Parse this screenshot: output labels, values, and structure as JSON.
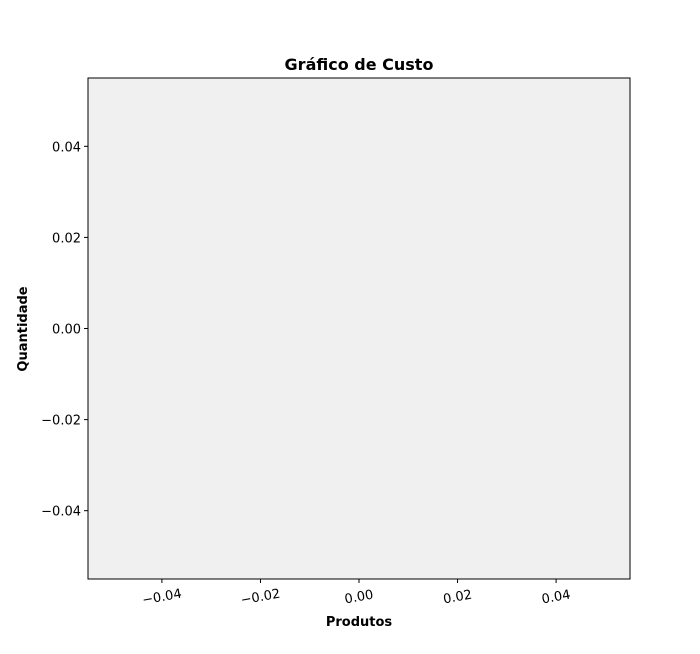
{
  "chart_data": {
    "type": "line",
    "title": "Gráfico de Custo",
    "xlabel": "Produtos",
    "ylabel": "Quantidade",
    "x": [],
    "series": [],
    "xlim": [
      -0.055,
      0.055
    ],
    "ylim": [
      -0.055,
      0.055
    ],
    "x_ticks": [
      -0.04,
      -0.02,
      0.0,
      0.02,
      0.04
    ],
    "x_tick_labels": [
      "−0.04",
      "−0.02",
      "0.00",
      "0.02",
      "0.04"
    ],
    "y_ticks": [
      -0.04,
      -0.02,
      0.0,
      0.02,
      0.04
    ],
    "y_tick_labels": [
      "−0.04",
      "−0.02",
      "0.00",
      "0.02",
      "0.04"
    ],
    "x_tick_rotation_deg": 10,
    "grid": false,
    "legend": "none",
    "colors": {
      "plot_background": "#f0f0f0",
      "figure_background": "#ffffff",
      "spine": "#000000",
      "text": "#000000"
    }
  }
}
